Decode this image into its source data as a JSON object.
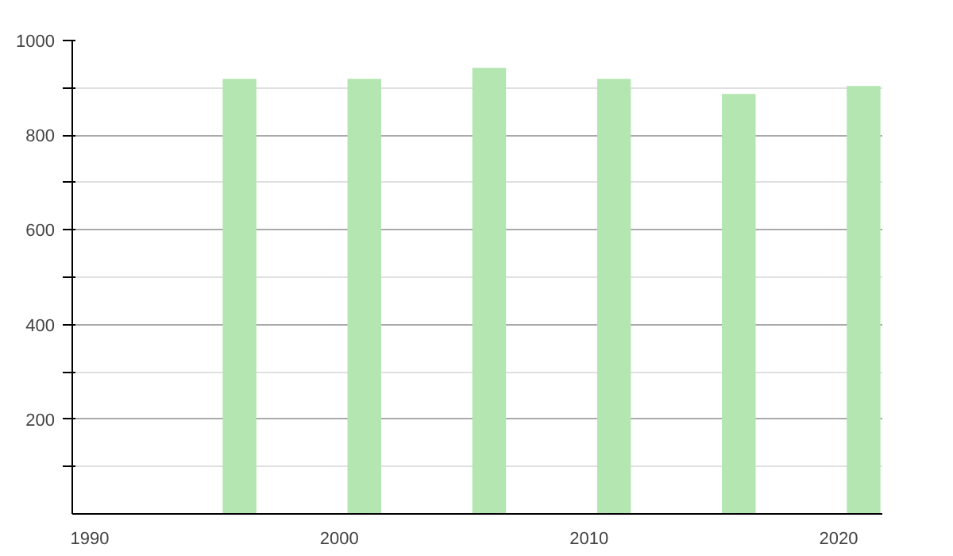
{
  "chart_data": {
    "type": "bar",
    "x": [
      1996,
      2001,
      2006,
      2011,
      2016,
      2021
    ],
    "values": [
      919,
      919,
      942,
      919,
      887,
      904
    ],
    "color": "#b3e6b0",
    "xlim": [
      1989.3,
      2021.75
    ],
    "xticks": [
      1990,
      2000,
      2010,
      2020
    ],
    "ylim": [
      0,
      1000
    ],
    "yticks": [
      {
        "value": 100,
        "label": null
      },
      200,
      {
        "value": 300,
        "label": null
      },
      400,
      {
        "value": 500,
        "label": null
      },
      600,
      {
        "value": 700,
        "label": null
      },
      800,
      {
        "value": 900,
        "label": null
      },
      1000
    ],
    "grid": true
  }
}
